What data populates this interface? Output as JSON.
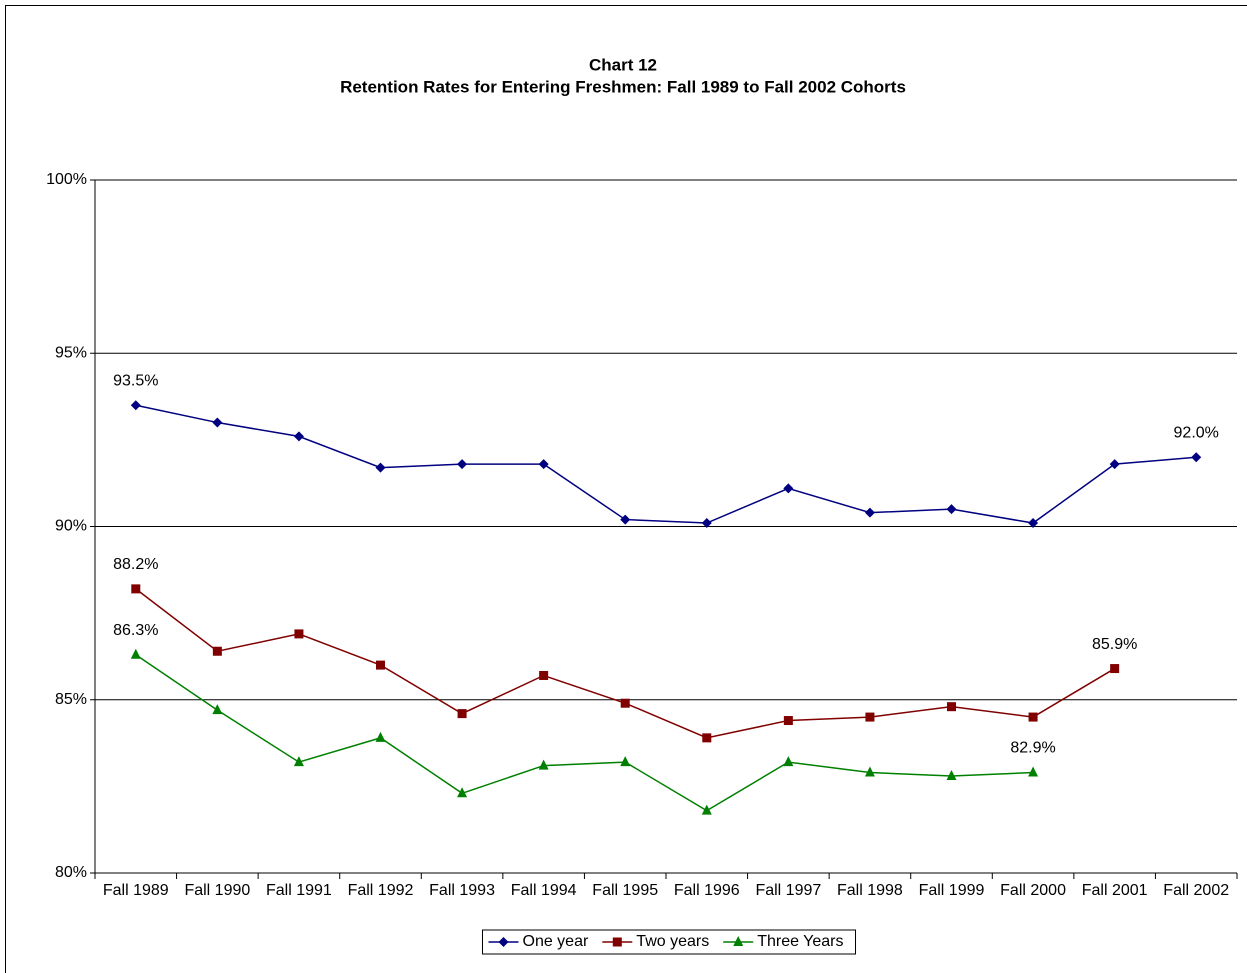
{
  "chart_data": {
    "type": "line",
    "title": "Chart 12",
    "subtitle": "Retention Rates for Entering Freshmen: Fall 1989 to Fall 2002 Cohorts",
    "categories": [
      "Fall 1989",
      "Fall 1990",
      "Fall 1991",
      "Fall 1992",
      "Fall 1993",
      "Fall 1994",
      "Fall 1995",
      "Fall 1996",
      "Fall 1997",
      "Fall 1998",
      "Fall 1999",
      "Fall 2000",
      "Fall 2001",
      "Fall 2002"
    ],
    "series": [
      {
        "name": "One year",
        "color": "#000080",
        "marker": "diamond",
        "values": [
          93.5,
          93.0,
          92.6,
          91.7,
          91.8,
          91.8,
          90.2,
          90.1,
          91.1,
          90.4,
          90.5,
          90.1,
          91.8,
          92.0
        ],
        "value_labels": [
          "93.5%",
          null,
          null,
          null,
          null,
          null,
          null,
          null,
          null,
          null,
          null,
          null,
          null,
          "92.0%"
        ]
      },
      {
        "name": "Two years",
        "color": "#800000",
        "marker": "square",
        "values": [
          88.2,
          86.4,
          86.9,
          86.0,
          84.6,
          85.7,
          84.9,
          83.9,
          84.4,
          84.5,
          84.8,
          84.5,
          85.9,
          null
        ],
        "value_labels": [
          "88.2%",
          null,
          null,
          null,
          null,
          null,
          null,
          null,
          null,
          null,
          null,
          null,
          "85.9%",
          null
        ]
      },
      {
        "name": "Three Years",
        "color": "#008000",
        "marker": "triangle",
        "values": [
          86.3,
          84.7,
          83.2,
          83.9,
          82.3,
          83.1,
          83.2,
          81.8,
          83.2,
          82.9,
          82.8,
          82.9,
          null,
          null
        ],
        "value_labels": [
          "86.3%",
          null,
          null,
          null,
          null,
          null,
          null,
          null,
          null,
          null,
          null,
          "82.9%",
          null,
          null
        ]
      }
    ],
    "ylim": [
      80,
      100
    ],
    "yticks": [
      {
        "value": 80,
        "label": "80%"
      },
      {
        "value": 85,
        "label": "85%"
      },
      {
        "value": 90,
        "label": "90%"
      },
      {
        "value": 95,
        "label": "95%"
      },
      {
        "value": 100,
        "label": "100%"
      }
    ],
    "grid": true,
    "legend": "bottom"
  }
}
